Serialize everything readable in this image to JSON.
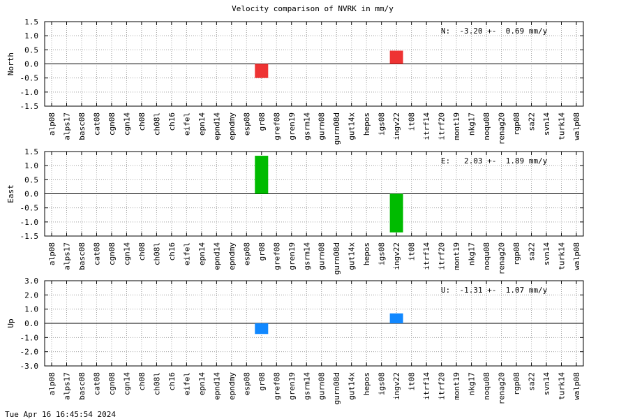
{
  "title": "Velocity comparison of NVRK in mm/y",
  "timestamp": "Tue Apr 16 16:45:54 2024",
  "chart_data": [
    {
      "type": "bar",
      "ylabel": "North",
      "ylim": [
        -1.5,
        1.5
      ],
      "yticks": [
        "1.5",
        "1.0",
        "0.5",
        "0.0",
        "-0.5",
        "-1.0",
        "-1.5"
      ],
      "annotation": "N:  -3.20 +-  0.69 mm/y",
      "color": "#ee3333",
      "grid": true,
      "categories": [
        "alp08",
        "alps17",
        "basc08",
        "cat08",
        "cgn08",
        "cgn14",
        "ch08",
        "ch08l",
        "ch16",
        "eifel",
        "epn14",
        "epnd14",
        "epndmy",
        "esp08",
        "gr08",
        "gref08",
        "gren19",
        "gsrm14",
        "gurn08",
        "gurn08d",
        "gut14x",
        "hepos",
        "igs08",
        "ingv22",
        "it08",
        "itrf14",
        "itrf20",
        "mont19",
        "nkg17",
        "noqu08",
        "renag20",
        "rgp08",
        "sa22",
        "svn14",
        "turk14",
        "walp08"
      ],
      "values": [
        null,
        null,
        null,
        null,
        null,
        null,
        null,
        null,
        null,
        null,
        null,
        null,
        null,
        null,
        -0.5,
        null,
        null,
        null,
        null,
        null,
        null,
        null,
        null,
        0.47,
        null,
        null,
        null,
        null,
        null,
        null,
        null,
        null,
        null,
        null,
        null,
        null
      ]
    },
    {
      "type": "bar",
      "ylabel": "East",
      "ylim": [
        -1.5,
        1.5
      ],
      "yticks": [
        "1.5",
        "1.0",
        "0.5",
        "0.0",
        "-0.5",
        "-1.0",
        "-1.5"
      ],
      "annotation": "E:   2.03 +-  1.89 mm/y",
      "color": "#00bb00",
      "grid": true,
      "categories": [
        "alp08",
        "alps17",
        "basc08",
        "cat08",
        "cgn08",
        "cgn14",
        "ch08",
        "ch08l",
        "ch16",
        "eifel",
        "epn14",
        "epnd14",
        "epndmy",
        "esp08",
        "gr08",
        "gref08",
        "gren19",
        "gsrm14",
        "gurn08",
        "gurn08d",
        "gut14x",
        "hepos",
        "igs08",
        "ingv22",
        "it08",
        "itrf14",
        "itrf20",
        "mont19",
        "nkg17",
        "noqu08",
        "renag20",
        "rgp08",
        "sa22",
        "svn14",
        "turk14",
        "walp08"
      ],
      "values": [
        null,
        null,
        null,
        null,
        null,
        null,
        null,
        null,
        null,
        null,
        null,
        null,
        null,
        null,
        1.35,
        null,
        null,
        null,
        null,
        null,
        null,
        null,
        null,
        -1.37,
        null,
        null,
        null,
        null,
        null,
        null,
        null,
        null,
        null,
        null,
        null,
        null
      ]
    },
    {
      "type": "bar",
      "ylabel": "Up",
      "ylim": [
        -3.0,
        3.0
      ],
      "yticks": [
        "3.0",
        "2.0",
        "1.0",
        "0.0",
        "-1.0",
        "-2.0",
        "-3.0"
      ],
      "annotation": "U:  -1.31 +-  1.07 mm/y",
      "color": "#1188ff",
      "grid": true,
      "categories": [
        "alp08",
        "alps17",
        "basc08",
        "cat08",
        "cgn08",
        "cgn14",
        "ch08",
        "ch08l",
        "ch16",
        "eifel",
        "epn14",
        "epnd14",
        "epndmy",
        "esp08",
        "gr08",
        "gref08",
        "gren19",
        "gsrm14",
        "gurn08",
        "gurn08d",
        "gut14x",
        "hepos",
        "igs08",
        "ingv22",
        "it08",
        "itrf14",
        "itrf20",
        "mont19",
        "nkg17",
        "noqu08",
        "renag20",
        "rgp08",
        "sa22",
        "svn14",
        "turk14",
        "walp08"
      ],
      "values": [
        null,
        null,
        null,
        null,
        null,
        null,
        null,
        null,
        null,
        null,
        null,
        null,
        null,
        null,
        -0.75,
        null,
        null,
        null,
        null,
        null,
        null,
        null,
        null,
        0.7,
        null,
        null,
        null,
        null,
        null,
        null,
        null,
        null,
        null,
        null,
        null,
        null
      ]
    }
  ]
}
